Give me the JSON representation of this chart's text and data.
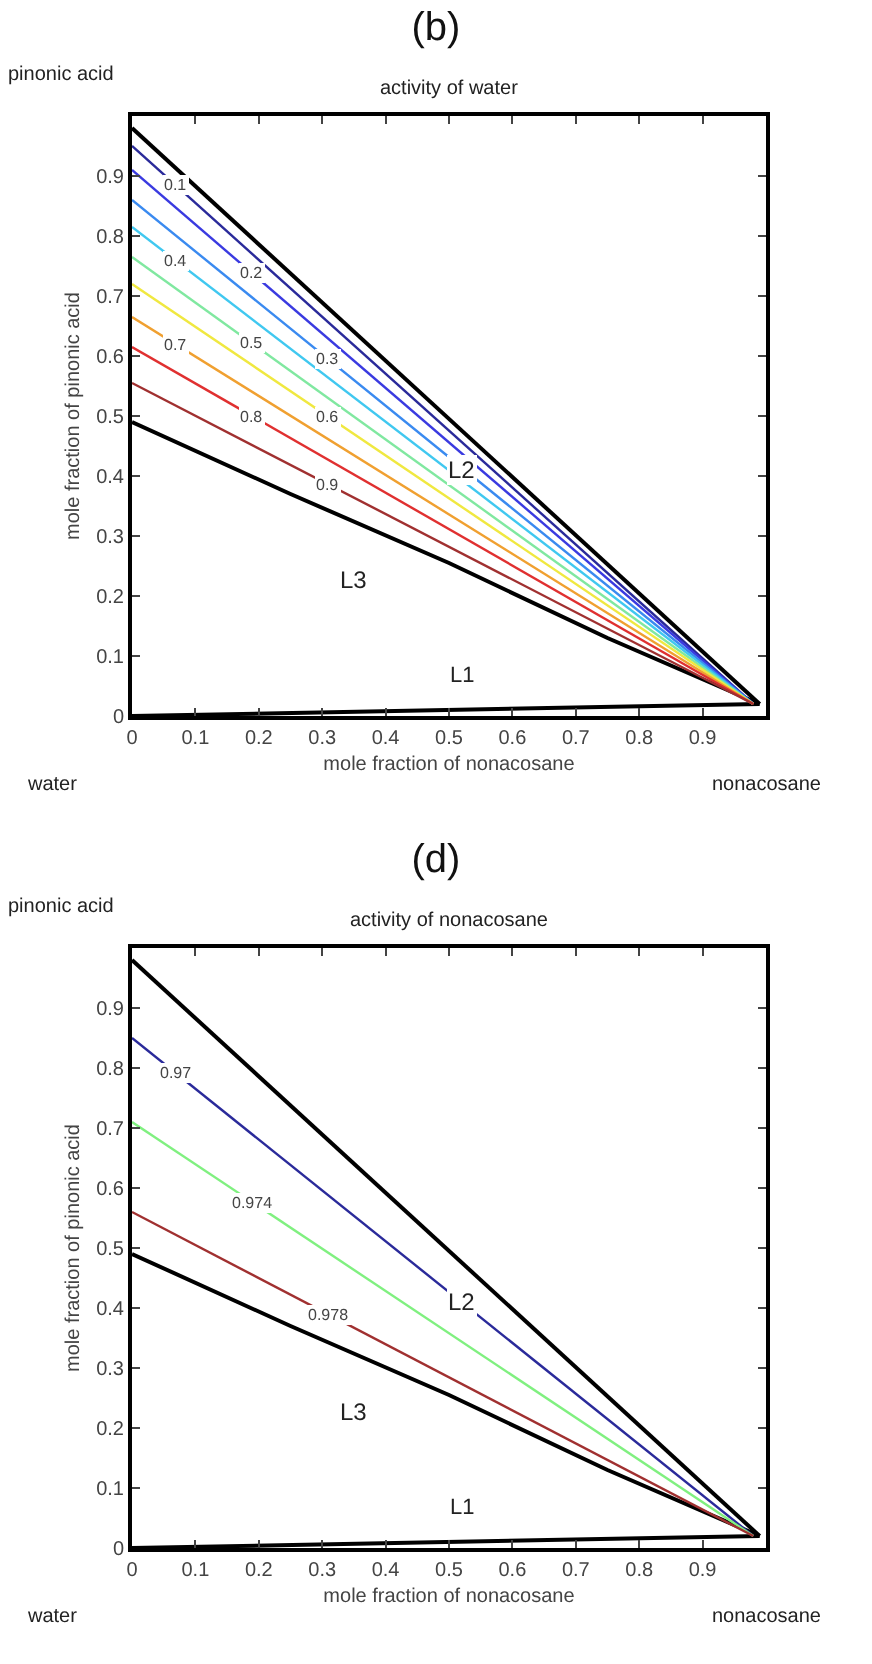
{
  "chart_data": [
    {
      "type": "line",
      "title": "(b)",
      "subtitle": "activity of water",
      "xlabel": "mole fraction of nonacosane",
      "ylabel": "mole fraction of pinonic acid",
      "xlim": [
        0,
        1
      ],
      "ylim": [
        0,
        1
      ],
      "xticks": [
        0,
        0.1,
        0.2,
        0.3,
        0.4,
        0.5,
        0.6,
        0.7,
        0.8,
        0.9
      ],
      "yticks": [
        0,
        0.1,
        0.2,
        0.3,
        0.4,
        0.5,
        0.6,
        0.7,
        0.8,
        0.9
      ],
      "grid": false,
      "legend": false,
      "marker": "none",
      "line_style": "solid",
      "series": [
        {
          "color": "#000000",
          "x": [
            0,
            0.99
          ],
          "values": [
            0.98,
            0.02
          ]
        },
        {
          "color": "#000000",
          "x": [
            0,
            0.25,
            0.5,
            0.75,
            0.99
          ],
          "values": [
            0.49,
            0.37,
            0.255,
            0.13,
            0.02
          ]
        },
        {
          "color": "#000000",
          "x": [
            0,
            0.99
          ],
          "values": [
            0,
            0.02
          ]
        },
        {
          "name": "0.1",
          "color": "#2a2a9a",
          "x": [
            0,
            0.98
          ],
          "values": [
            0.95,
            0.02
          ]
        },
        {
          "name": "0.2",
          "color": "#3a3ae0",
          "x": [
            0,
            0.98
          ],
          "values": [
            0.91,
            0.02
          ]
        },
        {
          "name": "0.3",
          "color": "#3a8af0",
          "x": [
            0,
            0.98
          ],
          "values": [
            0.86,
            0.02
          ]
        },
        {
          "name": "0.4",
          "color": "#40c8f0",
          "x": [
            0,
            0.98
          ],
          "values": [
            0.815,
            0.02
          ]
        },
        {
          "name": "0.5",
          "color": "#80e8a0",
          "x": [
            0,
            0.98
          ],
          "values": [
            0.765,
            0.02
          ]
        },
        {
          "name": "0.6",
          "color": "#f0e840",
          "x": [
            0,
            0.98
          ],
          "values": [
            0.72,
            0.02
          ]
        },
        {
          "name": "0.7",
          "color": "#f0a030",
          "x": [
            0,
            0.98
          ],
          "values": [
            0.665,
            0.02
          ]
        },
        {
          "name": "0.8",
          "color": "#e03030",
          "x": [
            0,
            0.98
          ],
          "values": [
            0.615,
            0.02
          ]
        },
        {
          "name": "0.9",
          "color": "#a03030",
          "x": [
            0,
            0.98
          ],
          "values": [
            0.555,
            0.02
          ]
        }
      ],
      "annotations": [
        "pinonic acid",
        "water",
        "nonacosane",
        "L2",
        "L3",
        "L1"
      ]
    },
    {
      "type": "line",
      "title": "(d)",
      "subtitle": "activity of nonacosane",
      "xlabel": "mole fraction of nonacosane",
      "ylabel": "mole fraction of pinonic acid",
      "xlim": [
        0,
        1
      ],
      "ylim": [
        0,
        1
      ],
      "xticks": [
        0,
        0.1,
        0.2,
        0.3,
        0.4,
        0.5,
        0.6,
        0.7,
        0.8,
        0.9
      ],
      "yticks": [
        0,
        0.1,
        0.2,
        0.3,
        0.4,
        0.5,
        0.6,
        0.7,
        0.8,
        0.9
      ],
      "grid": false,
      "legend": false,
      "marker": "none",
      "line_style": "solid",
      "series": [
        {
          "color": "#000000",
          "x": [
            0,
            0.99
          ],
          "values": [
            0.98,
            0.02
          ]
        },
        {
          "color": "#000000",
          "x": [
            0,
            0.25,
            0.5,
            0.75,
            0.99
          ],
          "values": [
            0.49,
            0.37,
            0.255,
            0.13,
            0.02
          ]
        },
        {
          "color": "#000000",
          "x": [
            0,
            0.99
          ],
          "values": [
            0,
            0.02
          ]
        },
        {
          "name": "0.97",
          "color": "#2a2a9a",
          "x": [
            0,
            0.98
          ],
          "values": [
            0.85,
            0.02
          ]
        },
        {
          "name": "0.974",
          "color": "#80f080",
          "x": [
            0,
            0.98
          ],
          "values": [
            0.71,
            0.02
          ]
        },
        {
          "name": "0.978",
          "color": "#a03030",
          "x": [
            0,
            0.98
          ],
          "values": [
            0.56,
            0.02
          ]
        }
      ],
      "annotations": [
        "pinonic acid",
        "water",
        "nonacosane",
        "L2",
        "L3",
        "L1"
      ]
    }
  ]
}
